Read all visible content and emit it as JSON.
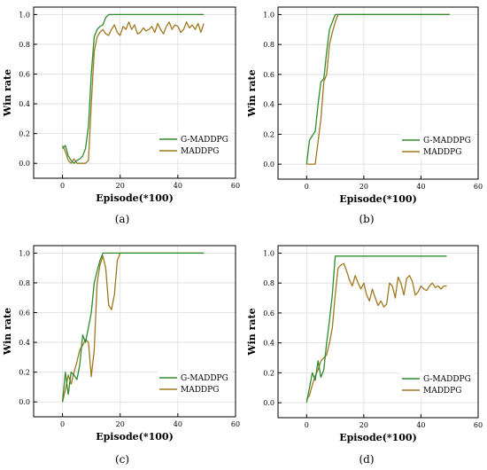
{
  "colors": {
    "g_maddpg": "#2e8b2e",
    "maddpg": "#a0781e",
    "grid": "#dddddd",
    "axis": "#000000"
  },
  "chart_data": [
    {
      "type": "line",
      "panel_label": "(a)",
      "xlabel": "Episode(*100)",
      "ylabel": "Win rate",
      "xlim": [
        -10,
        60
      ],
      "ylim": [
        -0.1,
        1.05
      ],
      "xticks": [
        0,
        20,
        40,
        60
      ],
      "yticks": [
        0.0,
        0.2,
        0.4,
        0.6,
        0.8,
        1.0
      ],
      "legend_position": "lower-right",
      "grid": true,
      "series": [
        {
          "name": "G-MADDPG",
          "color": "#2e8b2e",
          "x": [
            0,
            1,
            2,
            3,
            4,
            5,
            6,
            7,
            8,
            9,
            10,
            11,
            12,
            13,
            14,
            15,
            16,
            17,
            20,
            25,
            30,
            35,
            40,
            45,
            49
          ],
          "y": [
            0.1,
            0.12,
            0.05,
            0.02,
            0.0,
            0.02,
            0.03,
            0.05,
            0.1,
            0.25,
            0.6,
            0.85,
            0.9,
            0.92,
            0.93,
            0.98,
            1.0,
            1.0,
            1.0,
            1.0,
            1.0,
            1.0,
            1.0,
            1.0,
            1.0
          ]
        },
        {
          "name": "MADDPG",
          "color": "#a0781e",
          "x": [
            0,
            1,
            2,
            3,
            4,
            5,
            6,
            7,
            8,
            9,
            10,
            11,
            12,
            13,
            14,
            15,
            16,
            17,
            18,
            19,
            20,
            21,
            22,
            23,
            24,
            25,
            26,
            27,
            28,
            29,
            30,
            31,
            32,
            33,
            34,
            35,
            36,
            37,
            38,
            39,
            40,
            41,
            42,
            43,
            44,
            45,
            46,
            47,
            48,
            49
          ],
          "y": [
            0.12,
            0.08,
            0.02,
            0.0,
            0.03,
            0.0,
            0.0,
            0.0,
            0.0,
            0.02,
            0.4,
            0.75,
            0.85,
            0.88,
            0.9,
            0.87,
            0.86,
            0.9,
            0.93,
            0.88,
            0.86,
            0.92,
            0.9,
            0.95,
            0.9,
            0.93,
            0.87,
            0.88,
            0.91,
            0.89,
            0.9,
            0.92,
            0.88,
            0.94,
            0.9,
            0.87,
            0.92,
            0.95,
            0.9,
            0.93,
            0.92,
            0.88,
            0.9,
            0.95,
            0.91,
            0.93,
            0.9,
            0.94,
            0.88,
            0.94
          ]
        }
      ]
    },
    {
      "type": "line",
      "panel_label": "(b)",
      "xlabel": "Episode(*100)",
      "ylabel": "Win rate",
      "xlim": [
        -10,
        60
      ],
      "ylim": [
        -0.1,
        1.05
      ],
      "xticks": [
        0,
        20,
        40,
        60
      ],
      "yticks": [
        0.0,
        0.2,
        0.4,
        0.6,
        0.8,
        1.0
      ],
      "legend_position": "lower-right",
      "grid": true,
      "series": [
        {
          "name": "G-MADDPG",
          "color": "#2e8b2e",
          "x": [
            0,
            1,
            2,
            3,
            4,
            5,
            6,
            7,
            8,
            9,
            10,
            11,
            12,
            15,
            20,
            30,
            40,
            50
          ],
          "y": [
            0.0,
            0.16,
            0.19,
            0.22,
            0.4,
            0.55,
            0.57,
            0.75,
            0.9,
            0.95,
            1.0,
            1.0,
            1.0,
            1.0,
            1.0,
            1.0,
            1.0,
            1.0
          ]
        },
        {
          "name": "MADDPG",
          "color": "#a0781e",
          "x": [
            0,
            1,
            2,
            3,
            4,
            5,
            6,
            7,
            8,
            9,
            10,
            11,
            12,
            15,
            20,
            30,
            40,
            50
          ],
          "y": [
            0.0,
            0.0,
            0.0,
            0.0,
            0.15,
            0.3,
            0.55,
            0.6,
            0.8,
            0.88,
            0.95,
            1.0,
            1.0,
            1.0,
            1.0,
            1.0,
            1.0,
            1.0
          ]
        }
      ]
    },
    {
      "type": "line",
      "panel_label": "(c)",
      "xlabel": "Episode(*100)",
      "ylabel": "Win rate",
      "xlim": [
        -10,
        60
      ],
      "ylim": [
        -0.1,
        1.05
      ],
      "xticks": [
        0,
        20,
        40,
        60
      ],
      "yticks": [
        0.0,
        0.2,
        0.4,
        0.6,
        0.8,
        1.0
      ],
      "legend_position": "lower-right",
      "grid": true,
      "series": [
        {
          "name": "G-MADDPG",
          "color": "#2e8b2e",
          "x": [
            0,
            1,
            2,
            3,
            4,
            5,
            6,
            7,
            8,
            9,
            10,
            11,
            12,
            13,
            14,
            15,
            20,
            30,
            40,
            49
          ],
          "y": [
            0.0,
            0.2,
            0.05,
            0.2,
            0.18,
            0.15,
            0.25,
            0.45,
            0.4,
            0.5,
            0.6,
            0.8,
            0.88,
            0.95,
            1.0,
            1.0,
            1.0,
            1.0,
            1.0,
            1.0
          ]
        },
        {
          "name": "MADDPG",
          "color": "#a0781e",
          "x": [
            0,
            1,
            2,
            3,
            4,
            5,
            6,
            7,
            8,
            9,
            10,
            11,
            12,
            13,
            14,
            15,
            16,
            17,
            18,
            19,
            20,
            21,
            25,
            30,
            40,
            49
          ],
          "y": [
            0.0,
            0.08,
            0.18,
            0.12,
            0.2,
            0.27,
            0.35,
            0.38,
            0.42,
            0.4,
            0.17,
            0.35,
            0.8,
            0.92,
            0.98,
            0.9,
            0.65,
            0.62,
            0.72,
            0.95,
            1.0,
            1.0,
            1.0,
            1.0,
            1.0,
            1.0
          ]
        }
      ]
    },
    {
      "type": "line",
      "panel_label": "(d)",
      "xlabel": "Episode(*100)",
      "ylabel": "Win rate",
      "xlim": [
        -10,
        60
      ],
      "ylim": [
        -0.1,
        1.05
      ],
      "xticks": [
        0,
        20,
        40,
        60
      ],
      "yticks": [
        0.0,
        0.2,
        0.4,
        0.6,
        0.8,
        1.0
      ],
      "legend_position": "lower-right",
      "grid": true,
      "series": [
        {
          "name": "G-MADDPG",
          "color": "#2e8b2e",
          "x": [
            0,
            1,
            2,
            3,
            4,
            5,
            6,
            7,
            8,
            9,
            10,
            11,
            15,
            20,
            30,
            40,
            49
          ],
          "y": [
            0.0,
            0.1,
            0.2,
            0.15,
            0.28,
            0.17,
            0.22,
            0.4,
            0.55,
            0.72,
            0.98,
            0.98,
            0.98,
            0.98,
            0.98,
            0.98,
            0.98
          ]
        },
        {
          "name": "MADDPG",
          "color": "#a0781e",
          "x": [
            0,
            1,
            2,
            3,
            4,
            5,
            6,
            7,
            8,
            9,
            10,
            11,
            12,
            13,
            14,
            15,
            16,
            17,
            18,
            19,
            20,
            21,
            22,
            23,
            24,
            25,
            26,
            27,
            28,
            29,
            30,
            31,
            32,
            33,
            34,
            35,
            36,
            37,
            38,
            39,
            40,
            41,
            42,
            43,
            44,
            45,
            46,
            47,
            48,
            49
          ],
          "y": [
            0.02,
            0.05,
            0.12,
            0.18,
            0.22,
            0.28,
            0.3,
            0.32,
            0.4,
            0.5,
            0.72,
            0.9,
            0.92,
            0.93,
            0.88,
            0.82,
            0.78,
            0.85,
            0.8,
            0.76,
            0.8,
            0.72,
            0.68,
            0.76,
            0.7,
            0.65,
            0.68,
            0.64,
            0.66,
            0.8,
            0.78,
            0.7,
            0.84,
            0.8,
            0.72,
            0.83,
            0.85,
            0.81,
            0.72,
            0.74,
            0.78,
            0.76,
            0.75,
            0.78,
            0.8,
            0.77,
            0.78,
            0.76,
            0.78,
            0.78
          ]
        }
      ]
    }
  ]
}
